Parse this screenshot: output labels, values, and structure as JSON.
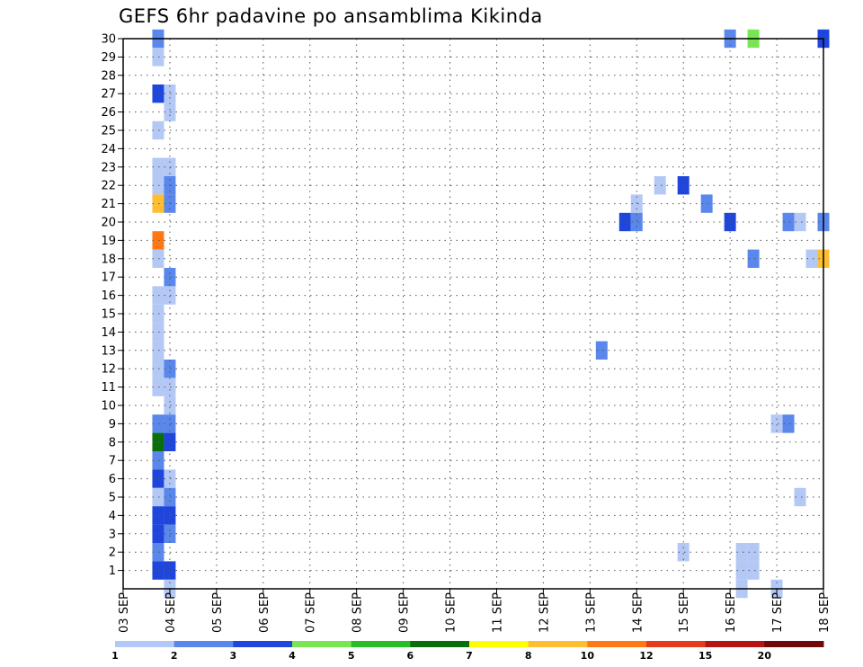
{
  "chart_data": {
    "type": "heatmap",
    "title": "GEFS 6hr padavine po ansamblima Kikinda",
    "x_tick_labels": [
      "03 SEP",
      "04 SEP",
      "05 SEP",
      "06 SEP",
      "07 SEP",
      "08 SEP",
      "09 SEP",
      "10 SEP",
      "11 SEP",
      "12 SEP",
      "13 SEP",
      "14 SEP",
      "15 SEP",
      "16 SEP",
      "17 SEP",
      "18 SEP"
    ],
    "y_tick_labels": [
      "1",
      "2",
      "3",
      "4",
      "5",
      "6",
      "7",
      "8",
      "9",
      "10",
      "11",
      "12",
      "13",
      "14",
      "15",
      "16",
      "17",
      "18",
      "19",
      "20",
      "21",
      "22",
      "23",
      "24",
      "25",
      "26",
      "27",
      "28",
      "29",
      "30"
    ],
    "x_range_days": [
      3,
      18
    ],
    "step_hours": 6,
    "y_range": [
      0,
      30
    ],
    "grid": true,
    "legend_position": "bottom",
    "colorbar": {
      "boundaries": [
        "1",
        "2",
        "3",
        "4",
        "5",
        "6",
        "7",
        "8",
        "10",
        "12",
        "15",
        "20"
      ],
      "colors": [
        "#b4c8f5",
        "#5a87eb",
        "#1e46dc",
        "#78e650",
        "#28be28",
        "#0a6e0a",
        "#ffff00",
        "#ffbe32",
        "#ff7814",
        "#e63c1e",
        "#b41414",
        "#6e0a0a"
      ]
    },
    "cells": [
      {
        "member": 30,
        "valid": "03 SEP 18Z",
        "bin": 2
      },
      {
        "member": 30,
        "valid": "16 SEP 00Z",
        "bin": 2
      },
      {
        "member": 30,
        "valid": "16 SEP 12Z",
        "bin": 4
      },
      {
        "member": 30,
        "valid": "18 SEP 00Z",
        "bin": 3
      },
      {
        "member": 29,
        "valid": "03 SEP 18Z",
        "bin": 1
      },
      {
        "member": 27,
        "valid": "03 SEP 18Z",
        "bin": 3
      },
      {
        "member": 27,
        "valid": "04 SEP 00Z",
        "bin": 1
      },
      {
        "member": 26,
        "valid": "04 SEP 00Z",
        "bin": 1
      },
      {
        "member": 25,
        "valid": "03 SEP 18Z",
        "bin": 1
      },
      {
        "member": 23,
        "valid": "03 SEP 18Z",
        "bin": 1
      },
      {
        "member": 23,
        "valid": "04 SEP 00Z",
        "bin": 1
      },
      {
        "member": 22,
        "valid": "03 SEP 18Z",
        "bin": 1
      },
      {
        "member": 22,
        "valid": "04 SEP 00Z",
        "bin": 2
      },
      {
        "member": 22,
        "valid": "14 SEP 12Z",
        "bin": 1
      },
      {
        "member": 22,
        "valid": "15 SEP 00Z",
        "bin": 3
      },
      {
        "member": 21,
        "valid": "03 SEP 18Z",
        "bin": 8
      },
      {
        "member": 21,
        "valid": "04 SEP 00Z",
        "bin": 2
      },
      {
        "member": 21,
        "valid": "14 SEP 00Z",
        "bin": 1
      },
      {
        "member": 21,
        "valid": "15 SEP 12Z",
        "bin": 2
      },
      {
        "member": 20,
        "valid": "13 SEP 18Z",
        "bin": 3
      },
      {
        "member": 20,
        "valid": "14 SEP 00Z",
        "bin": 2
      },
      {
        "member": 20,
        "valid": "16 SEP 00Z",
        "bin": 3
      },
      {
        "member": 20,
        "valid": "17 SEP 06Z",
        "bin": 2
      },
      {
        "member": 20,
        "valid": "17 SEP 12Z",
        "bin": 1
      },
      {
        "member": 20,
        "valid": "18 SEP 00Z",
        "bin": 2
      },
      {
        "member": 19,
        "valid": "03 SEP 18Z",
        "bin": 9
      },
      {
        "member": 18,
        "valid": "03 SEP 18Z",
        "bin": 1
      },
      {
        "member": 18,
        "valid": "16 SEP 12Z",
        "bin": 2
      },
      {
        "member": 18,
        "valid": "17 SEP 18Z",
        "bin": 1
      },
      {
        "member": 18,
        "valid": "18 SEP 00Z",
        "bin": 8
      },
      {
        "member": 17,
        "valid": "04 SEP 00Z",
        "bin": 2
      },
      {
        "member": 16,
        "valid": "03 SEP 18Z",
        "bin": 1
      },
      {
        "member": 16,
        "valid": "04 SEP 00Z",
        "bin": 1
      },
      {
        "member": 15,
        "valid": "03 SEP 18Z",
        "bin": 1
      },
      {
        "member": 14,
        "valid": "03 SEP 18Z",
        "bin": 1
      },
      {
        "member": 13,
        "valid": "03 SEP 18Z",
        "bin": 1
      },
      {
        "member": 13,
        "valid": "13 SEP 06Z",
        "bin": 2
      },
      {
        "member": 12,
        "valid": "03 SEP 18Z",
        "bin": 1
      },
      {
        "member": 12,
        "valid": "04 SEP 00Z",
        "bin": 2
      },
      {
        "member": 11,
        "valid": "03 SEP 18Z",
        "bin": 1
      },
      {
        "member": 11,
        "valid": "04 SEP 00Z",
        "bin": 1
      },
      {
        "member": 10,
        "valid": "04 SEP 00Z",
        "bin": 1
      },
      {
        "member": 9,
        "valid": "03 SEP 18Z",
        "bin": 2
      },
      {
        "member": 9,
        "valid": "04 SEP 00Z",
        "bin": 2
      },
      {
        "member": 9,
        "valid": "17 SEP 00Z",
        "bin": 1
      },
      {
        "member": 9,
        "valid": "17 SEP 06Z",
        "bin": 2
      },
      {
        "member": 8,
        "valid": "03 SEP 18Z",
        "bin": 6
      },
      {
        "member": 8,
        "valid": "04 SEP 00Z",
        "bin": 3
      },
      {
        "member": 7,
        "valid": "03 SEP 18Z",
        "bin": 2
      },
      {
        "member": 6,
        "valid": "03 SEP 18Z",
        "bin": 3
      },
      {
        "member": 6,
        "valid": "04 SEP 00Z",
        "bin": 1
      },
      {
        "member": 5,
        "valid": "03 SEP 18Z",
        "bin": 1
      },
      {
        "member": 5,
        "valid": "04 SEP 00Z",
        "bin": 2
      },
      {
        "member": 5,
        "valid": "17 SEP 12Z",
        "bin": 1
      },
      {
        "member": 4,
        "valid": "03 SEP 18Z",
        "bin": 3
      },
      {
        "member": 4,
        "valid": "04 SEP 00Z",
        "bin": 3
      },
      {
        "member": 3,
        "valid": "03 SEP 18Z",
        "bin": 3
      },
      {
        "member": 3,
        "valid": "04 SEP 00Z",
        "bin": 2
      },
      {
        "member": 2,
        "valid": "03 SEP 18Z",
        "bin": 2
      },
      {
        "member": 2,
        "valid": "15 SEP 00Z",
        "bin": 1
      },
      {
        "member": 2,
        "valid": "16 SEP 06Z",
        "bin": 1
      },
      {
        "member": 2,
        "valid": "16 SEP 12Z",
        "bin": 1
      },
      {
        "member": 1,
        "valid": "03 SEP 18Z",
        "bin": 3
      },
      {
        "member": 1,
        "valid": "04 SEP 00Z",
        "bin": 3
      },
      {
        "member": 1,
        "valid": "16 SEP 06Z",
        "bin": 1
      },
      {
        "member": 1,
        "valid": "16 SEP 12Z",
        "bin": 1
      },
      {
        "member": 0,
        "valid": "04 SEP 00Z",
        "bin": 1
      },
      {
        "member": 0,
        "valid": "16 SEP 06Z",
        "bin": 1
      },
      {
        "member": 0,
        "valid": "17 SEP 00Z",
        "bin": 1
      }
    ]
  }
}
